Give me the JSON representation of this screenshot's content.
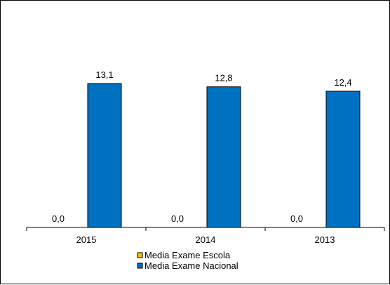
{
  "chart_data": {
    "type": "bar",
    "categories": [
      "2015",
      "2014",
      "2013"
    ],
    "series": [
      {
        "name": "Media Exame Escola",
        "values": [
          0.0,
          0.0,
          0.0
        ],
        "value_labels": [
          "0,0",
          "0,0",
          "0,0"
        ],
        "color": "#FFC000"
      },
      {
        "name": "Media Exame Nacional",
        "values": [
          13.1,
          12.8,
          12.4
        ],
        "value_labels": [
          "13,1",
          "12,8",
          "12,4"
        ],
        "color": "#0070C0"
      }
    ],
    "ylim": [
      0,
      20
    ],
    "grid": false,
    "legend_position": "bottom",
    "title": "",
    "xlabel": "",
    "ylabel": ""
  }
}
